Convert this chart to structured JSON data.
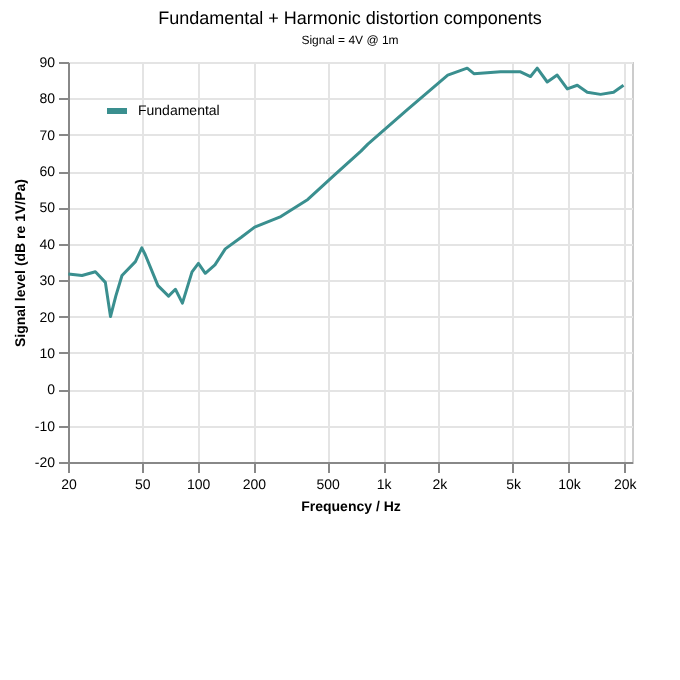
{
  "chart_data": {
    "type": "line",
    "title": "Fundamental + Harmonic distortion components",
    "subtitle": "Signal = 4V @ 1m",
    "xlabel": "Frequency / Hz",
    "ylabel": "Signal level (dB re 1V/Pa)",
    "log": "x",
    "grid": true,
    "legend": "top left",
    "line_style": "solid",
    "marker": "none",
    "x": [
      20.1,
      23.8,
      28.1,
      31.8,
      33.9,
      36.2,
      39.1,
      46.2,
      50,
      52.2,
      61.1,
      69.7,
      75.9,
      82.8,
      93.3,
      101,
      110,
      124,
      141,
      172,
      203,
      281,
      393,
      546,
      760,
      828,
      1352,
      2233,
      2842,
      3090,
      4300,
      5510,
      6240,
      6780,
      7680,
      8690,
      9850,
      11150,
      12620,
      14890,
      17500,
      19800
    ],
    "series": [
      {
        "name": "Fundamental",
        "color": "#3a8f8f",
        "values": [
          31.7,
          31.3,
          32.3,
          29.4,
          20,
          25.6,
          31.3,
          35.1,
          38.9,
          37,
          28.5,
          25.6,
          27.5,
          23.7,
          32.3,
          34.6,
          31.9,
          34.2,
          38.6,
          41.8,
          44.6,
          47.5,
          52.2,
          58.9,
          65.5,
          67.4,
          76.9,
          86.4,
          88.3,
          86.8,
          87.3,
          87.3,
          86,
          88.3,
          84.5,
          86.4,
          82.6,
          83.6,
          81.7,
          81.1,
          81.7,
          83.6
        ]
      }
    ],
    "xlim": [
      20,
      22000
    ],
    "xticks": [
      20,
      50,
      100,
      200,
      500,
      {
        "value": 1000,
        "label": "1k"
      },
      {
        "value": 2000,
        "label": "2k"
      },
      {
        "value": 5000,
        "label": "5k"
      },
      {
        "value": 10000,
        "label": "10k"
      },
      {
        "value": 20000,
        "label": "20k"
      }
    ],
    "ylim": [
      -20,
      90
    ],
    "yticks": [
      -20,
      -10,
      0,
      10,
      20,
      30,
      40,
      50,
      60,
      70,
      80,
      90
    ]
  }
}
